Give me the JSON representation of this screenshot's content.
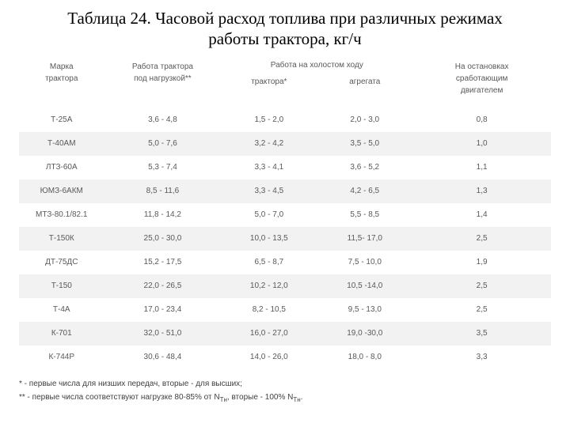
{
  "title_line1": "Таблица 24.  Часовой расход топлива при различных режимах",
  "title_line2": "работы трактора, кг/ч",
  "header": {
    "col1_l1": "Марка",
    "col1_l2": "трактора",
    "col2_l1": "Работа трактора",
    "col2_l2": "под нагрузкой**",
    "col3_span": "Работа на  холостом  ходу",
    "col3a": "трактора*",
    "col3b": "агрегата",
    "col4_l1": "На остановках",
    "col4_l2": "сработающим",
    "col4_l3": "двигателем"
  },
  "columns": {
    "widths_pct": [
      16,
      22,
      18,
      18,
      26
    ],
    "alt_row_bg": "#f2f2f2",
    "text_color": "#595959",
    "header_text_color": "#595959"
  },
  "rows": [
    {
      "model": "Т-25А",
      "load": "3,6 - 4,8",
      "idle_tr": "1,5 - 2,0",
      "idle_ag": "2,0 - 3,0",
      "stop": "0,8"
    },
    {
      "model": "Т-40АМ",
      "load": "5,0 - 7,6",
      "idle_tr": "3,2 - 4,2",
      "idle_ag": "3,5 - 5,0",
      "stop": "1,0"
    },
    {
      "model": "ЛТЗ-60А",
      "load": "5,3 - 7,4",
      "idle_tr": "3,3 - 4,1",
      "idle_ag": "3,6 - 5,2",
      "stop": "1,1"
    },
    {
      "model": "ЮМЗ-6АКМ",
      "load": "8,5 - 11,6",
      "idle_tr": "3,3 - 4,5",
      "idle_ag": "4,2 - 6,5",
      "stop": "1,3"
    },
    {
      "model": "МТЗ-80.1/82.1",
      "load": "11,8 - 14,2",
      "idle_tr": "5,0 - 7,0",
      "idle_ag": "5,5 - 8,5",
      "stop": "1,4"
    },
    {
      "model": "Т-150К",
      "load": "25,0 - 30,0",
      "idle_tr": "10,0 - 13,5",
      "idle_ag": "11,5- 17,0",
      "stop": "2,5"
    },
    {
      "model": "ДТ-75ДС",
      "load": "15,2 - 17,5",
      "idle_tr": "6,5 - 8,7",
      "idle_ag": "7,5 - 10,0",
      "stop": "1,9"
    },
    {
      "model": "Т-150",
      "load": "22,0 - 26,5",
      "idle_tr": "10,2 - 12,0",
      "idle_ag": "10,5 -14,0",
      "stop": "2,5"
    },
    {
      "model": "Т-4А",
      "load": "17,0 - 23,4",
      "idle_tr": "8,2 - 10,5",
      "idle_ag": "9,5 - 13,0",
      "stop": "2,5"
    },
    {
      "model": "К-701",
      "load": "32,0 - 51,0",
      "idle_tr": "16,0 - 27,0",
      "idle_ag": "19,0 -30,0",
      "stop": "3,5"
    },
    {
      "model": "К-744Р",
      "load": "30,6 - 48,4",
      "idle_tr": "14,0 - 26,0",
      "idle_ag": "18,0 - 8,0",
      "stop": "3,3"
    }
  ],
  "footnote1": "* - первые числа для низших передач, вторые - для высших;",
  "footnote2_pre": "** - первые числа соответствуют нагрузке 80-85% от N",
  "footnote2_sub1": "Тн",
  "footnote2_mid": ", вторые - 100% N",
  "footnote2_sub2": "Тн",
  "footnote2_end": "."
}
